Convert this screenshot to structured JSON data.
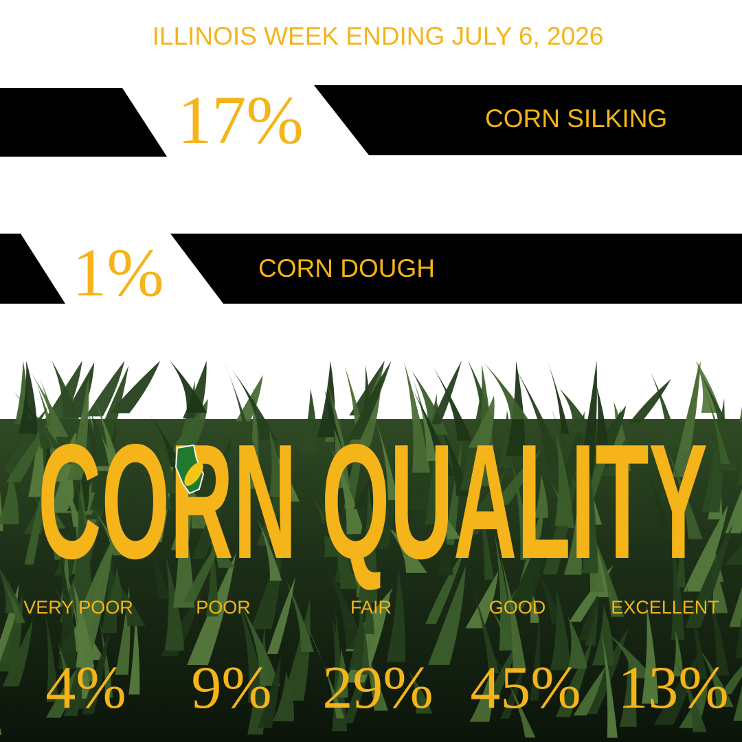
{
  "header": {
    "title": "ILLINOIS WEEK ENDING JULY 6, 2026"
  },
  "progress": [
    {
      "value": "17%",
      "label": "CORN SILKING"
    },
    {
      "value": "1%",
      "label": "CORN DOUGH"
    }
  ],
  "quality": {
    "title": "CORN QUALITY",
    "ratings": [
      {
        "label": "VERY POOR",
        "value": "4%"
      },
      {
        "label": "POOR",
        "value": "9%"
      },
      {
        "label": "FAIR",
        "value": "29%"
      },
      {
        "label": "GOOD",
        "value": "45%"
      },
      {
        "label": "EXCELLENT",
        "value": "13%"
      }
    ]
  }
}
